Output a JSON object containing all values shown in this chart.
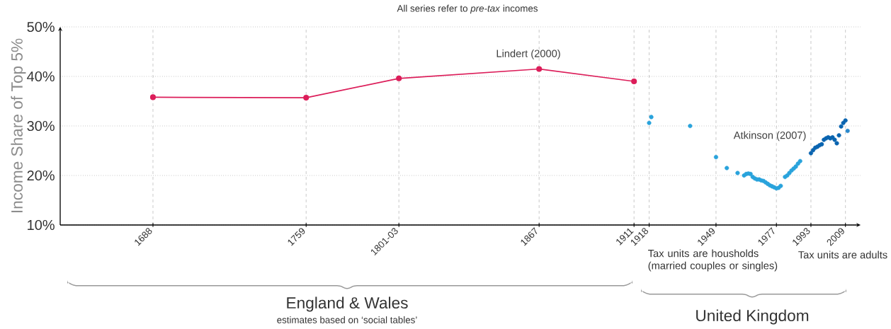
{
  "chart_data": {
    "type": "line",
    "title": "All series refer to *pre-tax* incomes",
    "ylabel": "Income Share of Top 5%",
    "xlim": [
      1645,
      2016
    ],
    "ylim": [
      10,
      50
    ],
    "xticks": [
      1688,
      1759,
      {
        "value": 1802,
        "label": "1801-03"
      },
      1867,
      1911,
      1918,
      1949,
      1977,
      1993,
      2009
    ],
    "yticks": [
      {
        "value": 10,
        "label": "10%"
      },
      {
        "value": 20,
        "label": "20%"
      },
      {
        "value": 30,
        "label": "30%"
      },
      {
        "value": 40,
        "label": "40%"
      },
      {
        "value": 50,
        "label": "50%"
      }
    ],
    "grid": true,
    "marker": "circle",
    "series": [
      {
        "name": "Lindert (2000)",
        "color": "#dc1e5a",
        "line_style": "solid",
        "x": [
          1688,
          1759,
          1802,
          1867,
          1911
        ],
        "values": [
          35.8,
          35.7,
          39.6,
          41.5,
          39.0
        ]
      },
      {
        "name": "Atkinson (2007)",
        "type": "scatter",
        "x": [
          1918,
          1919,
          1937,
          1949,
          1954,
          1959,
          1962,
          1963,
          1964,
          1965,
          1966,
          1967,
          1968,
          1969,
          1970,
          1971,
          1972,
          1973,
          1974,
          1975,
          1976,
          1977,
          1978,
          1979,
          1981,
          1982,
          1983,
          1984,
          1985,
          1986,
          1987,
          1988,
          1993,
          1994,
          1995,
          1996,
          1997,
          1998,
          1999,
          2000,
          2001,
          2002,
          2003,
          2004,
          2005,
          2006,
          2007,
          2008,
          2009,
          2010
        ],
        "values": [
          30.6,
          31.8,
          30.0,
          23.7,
          21.5,
          20.5,
          20.0,
          20.3,
          20.4,
          20.3,
          19.7,
          19.4,
          19.2,
          19.2,
          19.0,
          18.9,
          18.6,
          18.3,
          18.0,
          17.8,
          17.6,
          17.4,
          17.5,
          17.9,
          19.7,
          20.0,
          20.5,
          21.0,
          21.4,
          21.8,
          22.4,
          22.9,
          24.5,
          25.1,
          25.6,
          25.8,
          26.1,
          26.3,
          27.2,
          27.5,
          27.7,
          27.5,
          27.7,
          27.2,
          26.5,
          28.1,
          29.9,
          30.6,
          31.1,
          29.0
        ],
        "colors": [
          "#29a3dc",
          "#29a3dc",
          "#29a3dc",
          "#29a3dc",
          "#29a3dc",
          "#29a3dc",
          "#29a3dc",
          "#29a3dc",
          "#29a3dc",
          "#29a3dc",
          "#29a3dc",
          "#29a3dc",
          "#29a3dc",
          "#29a3dc",
          "#29a3dc",
          "#29a3dc",
          "#29a3dc",
          "#29a3dc",
          "#29a3dc",
          "#29a3dc",
          "#29a3dc",
          "#29a3dc",
          "#29a3dc",
          "#29a3dc",
          "#29a3dc",
          "#29a3dc",
          "#29a3dc",
          "#29a3dc",
          "#29a3dc",
          "#29a3dc",
          "#29a3dc",
          "#29a3dc",
          "#0a64b0",
          "#0a64b0",
          "#0a64b0",
          "#0a64b0",
          "#0a64b0",
          "#0a64b0",
          "#0a64b0",
          "#0a64b0",
          "#0a64b0",
          "#0a64b0",
          "#0a64b0",
          "#0a64b0",
          "#0a64b0",
          "#0a64b0",
          "#0a64b0",
          "#0a64b0",
          "#0a64b0",
          "#2a88cc"
        ]
      }
    ],
    "annotations": [
      "England & Wales",
      "estimates based on ‘social tables’",
      "Tax units are housholds (married couples or singles)",
      "Tax units are adults",
      "United Kingdom"
    ]
  }
}
